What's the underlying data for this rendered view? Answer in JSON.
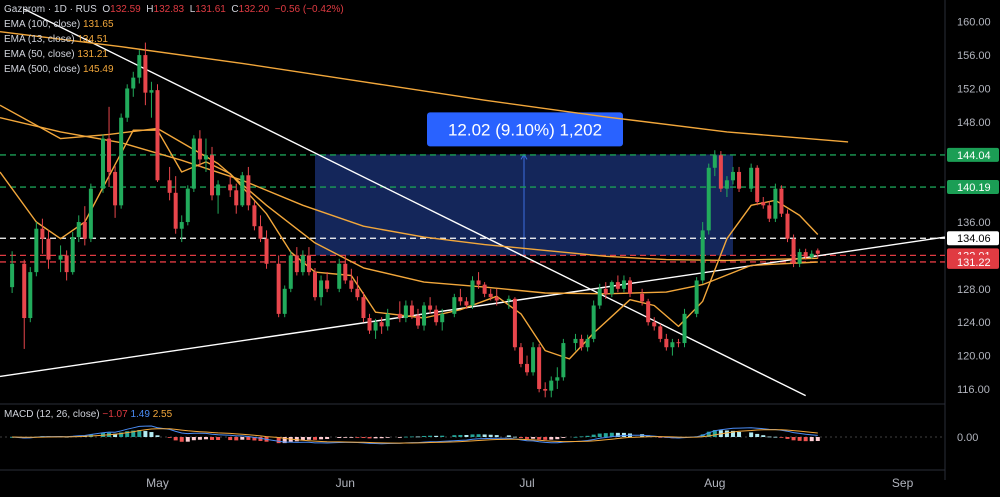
{
  "header": {
    "symbol": "Gazprom · 1D · RUS",
    "o_label": "O",
    "o": "132.59",
    "h_label": "H",
    "h": "132.83",
    "l_label": "L",
    "l": "131.61",
    "c_label": "C",
    "c": "132.20",
    "change": "−0.56 (−0.42%)"
  },
  "indicators": [
    {
      "label": "EMA (100, close)",
      "value": "131.65",
      "color": "#f2a73b"
    },
    {
      "label": "EMA (13, close)",
      "value": "134.51",
      "color": "#f2a73b"
    },
    {
      "label": "EMA (50, close)",
      "value": "131.21",
      "color": "#f2a73b"
    },
    {
      "label": "EMA (500, close)",
      "value": "145.49",
      "color": "#f2a73b"
    }
  ],
  "macd": {
    "label": "MACD (12, 26, close)",
    "v1": "−1.07",
    "v2": "1.49",
    "v3": "2.55"
  },
  "measure_label": "12.02 (9.10%) 1,202",
  "chart_data": {
    "type": "candlestick",
    "y_ticks": [
      116,
      120,
      124,
      128,
      132,
      136,
      140,
      144,
      148,
      152,
      156,
      160
    ],
    "ylim": [
      114.2,
      162.6
    ],
    "x_labels": [
      {
        "label": "May",
        "day": 26
      },
      {
        "label": "Jun",
        "day": 57
      },
      {
        "label": "Jul",
        "day": 87
      },
      {
        "label": "Aug",
        "day": 118
      },
      {
        "label": "Sep",
        "day": 149
      }
    ],
    "xlim": [
      0,
      156
    ],
    "price_tags": [
      {
        "value": 144.04,
        "label": "144.04",
        "color": "#1b9e55",
        "line": "dashed"
      },
      {
        "value": 140.19,
        "label": "140.19",
        "color": "#1b9e55",
        "line": "dashed"
      },
      {
        "value": 134.06,
        "label": "134.06",
        "color": "#ffffff",
        "line": "dashed"
      },
      {
        "value": 132.01,
        "label": "132.01",
        "color": "#e03b42",
        "line": "dashed"
      },
      {
        "value": 131.22,
        "label": "131.22",
        "color": "#e03b42",
        "line": "dashed"
      }
    ],
    "measure_box": {
      "day_start": 52,
      "day_end": 121,
      "low": 132.0,
      "high": 144.1
    },
    "trendlines": [
      {
        "name": "down",
        "from": [
          4,
          161.5
        ],
        "to": [
          133,
          115.2
        ]
      },
      {
        "name": "up",
        "from": [
          0,
          117.5
        ],
        "to": [
          156,
          134.2
        ]
      }
    ],
    "candles": [
      [
        2,
        128.2,
        132.5,
        127.5,
        131.0
      ],
      [
        4,
        131.0,
        131.5,
        120.8,
        124.5
      ],
      [
        5,
        124.5,
        130.6,
        124.0,
        130.0
      ],
      [
        6,
        130.0,
        136.0,
        129.5,
        135.2
      ],
      [
        7,
        135.2,
        136.4,
        132.2,
        134.0
      ],
      [
        8,
        134.0,
        135.0,
        130.4,
        131.5
      ],
      [
        10,
        131.5,
        133.2,
        130.0,
        132.0
      ],
      [
        11,
        132.0,
        132.6,
        129.0,
        130.0
      ],
      [
        12,
        130.0,
        134.8,
        129.7,
        134.2
      ],
      [
        13,
        134.2,
        136.8,
        133.6,
        136.0
      ],
      [
        14,
        136.0,
        137.9,
        133.2,
        134.0
      ],
      [
        15,
        134.0,
        140.6,
        133.6,
        140.0
      ],
      [
        17,
        140.0,
        146.5,
        139.5,
        146.0
      ],
      [
        18,
        146.0,
        149.8,
        140.2,
        142.0
      ],
      [
        19,
        142.0,
        142.7,
        136.5,
        138.0
      ],
      [
        20,
        138.0,
        149.0,
        137.6,
        148.5
      ],
      [
        21,
        148.5,
        152.5,
        148.0,
        152.0
      ],
      [
        22,
        152.0,
        154.0,
        151.0,
        153.3
      ],
      [
        23,
        153.3,
        156.6,
        152.6,
        156.0
      ],
      [
        24,
        156.0,
        157.5,
        150.0,
        151.5
      ],
      [
        25,
        151.5,
        152.8,
        148.5,
        151.8
      ],
      [
        26,
        151.8,
        152.5,
        140.8,
        141.0
      ],
      [
        28,
        141.0,
        142.6,
        138.6,
        139.5
      ],
      [
        29,
        139.5,
        141.5,
        134.6,
        135.2
      ],
      [
        30,
        135.2,
        136.8,
        133.6,
        136.0
      ],
      [
        31,
        136.0,
        140.4,
        135.6,
        140.0
      ],
      [
        32,
        140.0,
        146.4,
        139.6,
        146.0
      ],
      [
        33,
        146.0,
        147.0,
        142.6,
        143.5
      ],
      [
        34,
        143.5,
        146.0,
        142.0,
        144.0
      ],
      [
        35,
        144.0,
        145.0,
        138.6,
        139.2
      ],
      [
        36,
        139.2,
        141.0,
        137.0,
        140.5
      ],
      [
        38,
        140.5,
        141.5,
        139.0,
        139.8
      ],
      [
        39,
        139.8,
        140.6,
        137.0,
        138.0
      ],
      [
        40,
        138.0,
        142.0,
        137.8,
        141.6
      ],
      [
        41,
        141.6,
        142.6,
        137.4,
        138.0
      ],
      [
        42,
        138.0,
        138.5,
        135.0,
        135.5
      ],
      [
        43,
        135.5,
        136.8,
        133.6,
        134.0
      ],
      [
        44,
        134.0,
        135.0,
        130.4,
        131.0
      ],
      [
        46,
        131.0,
        132.0,
        124.6,
        125.0
      ],
      [
        47,
        125.0,
        128.4,
        124.6,
        128.0
      ],
      [
        48,
        128.0,
        132.5,
        127.6,
        132.0
      ],
      [
        49,
        132.0,
        133.0,
        129.6,
        130.0
      ],
      [
        50,
        130.0,
        132.6,
        129.6,
        132.0
      ],
      [
        51,
        132.0,
        133.0,
        129.6,
        130.0
      ],
      [
        52,
        130.0,
        130.5,
        126.6,
        127.0
      ],
      [
        53,
        127.0,
        129.6,
        126.0,
        129.0
      ],
      [
        54,
        129.0,
        130.0,
        127.6,
        128.0
      ],
      [
        56,
        128.0,
        131.6,
        127.6,
        131.0
      ],
      [
        57,
        131.0,
        132.0,
        128.6,
        129.0
      ],
      [
        58,
        129.0,
        130.4,
        127.6,
        128.0
      ],
      [
        59,
        128.0,
        129.5,
        126.6,
        127.0
      ],
      [
        60,
        127.0,
        127.6,
        124.0,
        124.5
      ],
      [
        61,
        124.5,
        125.0,
        122.6,
        123.0
      ],
      [
        62,
        123.0,
        124.4,
        122.0,
        124.0
      ],
      [
        63,
        124.0,
        124.6,
        122.6,
        123.5
      ],
      [
        64,
        123.5,
        125.6,
        123.0,
        125.0
      ],
      [
        66,
        125.0,
        126.5,
        124.0,
        124.5
      ],
      [
        67,
        124.5,
        126.6,
        124.0,
        126.0
      ],
      [
        68,
        126.0,
        126.6,
        124.4,
        124.8
      ],
      [
        69,
        124.8,
        125.6,
        123.2,
        123.6
      ],
      [
        70,
        123.6,
        126.4,
        123.0,
        126.0
      ],
      [
        71,
        126.0,
        127.0,
        125.0,
        125.5
      ],
      [
        72,
        125.5,
        126.0,
        123.6,
        124.0
      ],
      [
        73,
        124.0,
        125.6,
        123.0,
        125.0
      ],
      [
        75,
        125.0,
        127.4,
        124.6,
        127.0
      ],
      [
        76,
        127.0,
        128.0,
        126.0,
        126.5
      ],
      [
        77,
        126.5,
        127.0,
        125.6,
        126.0
      ],
      [
        78,
        126.0,
        129.5,
        125.6,
        129.0
      ],
      [
        79,
        129.0,
        130.0,
        128.0,
        128.5
      ],
      [
        80,
        128.5,
        128.8,
        127.0,
        127.4
      ],
      [
        81,
        127.4,
        128.0,
        126.6,
        127.0
      ],
      [
        82,
        127.0,
        128.0,
        126.0,
        126.6
      ],
      [
        84,
        126.6,
        127.2,
        125.6,
        126.8
      ],
      [
        85,
        126.8,
        127.0,
        120.6,
        121.0
      ],
      [
        86,
        121.0,
        121.5,
        118.6,
        119.0
      ],
      [
        87,
        119.0,
        120.0,
        117.6,
        118.0
      ],
      [
        88,
        118.0,
        121.6,
        117.6,
        121.0
      ],
      [
        89,
        121.0,
        121.4,
        115.6,
        116.0
      ],
      [
        90,
        116.0,
        116.8,
        115.0,
        115.8
      ],
      [
        91,
        115.8,
        117.5,
        115.0,
        117.0
      ],
      [
        92,
        117.0,
        118.6,
        116.0,
        117.4
      ],
      [
        93,
        117.4,
        122.0,
        117.0,
        121.5
      ],
      [
        95,
        121.5,
        122.6,
        120.6,
        122.0
      ],
      [
        96,
        122.0,
        122.5,
        120.6,
        121.0
      ],
      [
        97,
        121.0,
        122.5,
        120.5,
        122.0
      ],
      [
        98,
        122.0,
        126.6,
        121.6,
        126.0
      ],
      [
        99,
        126.0,
        128.6,
        125.6,
        128.0
      ],
      [
        100,
        128.0,
        128.8,
        126.8,
        127.4
      ],
      [
        101,
        127.4,
        129.0,
        127.0,
        128.8
      ],
      [
        102,
        128.8,
        129.6,
        127.6,
        128.0
      ],
      [
        103,
        128.0,
        129.6,
        127.6,
        129.0
      ],
      [
        104,
        129.0,
        129.4,
        127.0,
        127.4
      ],
      [
        106,
        127.4,
        128.0,
        126.0,
        126.5
      ],
      [
        107,
        126.5,
        126.8,
        123.6,
        124.0
      ],
      [
        108,
        124.0,
        124.6,
        123.0,
        123.5
      ],
      [
        109,
        123.5,
        123.8,
        121.6,
        122.0
      ],
      [
        110,
        122.0,
        122.6,
        120.6,
        121.0
      ],
      [
        111,
        121.0,
        122.0,
        120.0,
        121.6
      ],
      [
        112,
        121.6,
        122.0,
        121.0,
        121.5
      ],
      [
        113,
        121.5,
        125.6,
        121.0,
        125.0
      ],
      [
        115,
        125.0,
        129.4,
        124.6,
        129.0
      ],
      [
        116,
        129.0,
        136.0,
        128.6,
        135.0
      ],
      [
        117,
        135.0,
        143.0,
        134.5,
        142.5
      ],
      [
        118,
        142.5,
        144.6,
        141.5,
        144.0
      ],
      [
        119,
        144.0,
        144.5,
        139.6,
        140.0
      ],
      [
        120,
        140.0,
        141.5,
        139.0,
        141.0
      ],
      [
        121,
        141.0,
        142.6,
        140.5,
        142.0
      ],
      [
        122,
        142.0,
        142.6,
        139.6,
        140.0
      ],
      [
        124,
        140.0,
        143.0,
        139.6,
        142.5
      ],
      [
        125,
        142.5,
        142.8,
        138.0,
        138.4
      ],
      [
        126,
        138.4,
        139.0,
        137.6,
        138.0
      ],
      [
        127,
        138.0,
        138.5,
        136.0,
        136.4
      ],
      [
        128,
        136.4,
        140.6,
        136.0,
        140.0
      ],
      [
        129,
        140.0,
        140.4,
        136.6,
        137.0
      ],
      [
        130,
        137.0,
        137.5,
        133.6,
        134.0
      ],
      [
        131,
        134.0,
        134.5,
        130.6,
        131.0
      ],
      [
        132,
        131.0,
        132.8,
        130.6,
        132.4
      ],
      [
        133,
        132.4,
        132.8,
        131.5,
        131.8
      ],
      [
        134,
        131.8,
        132.6,
        131.6,
        132.2
      ],
      [
        135,
        132.59,
        132.83,
        131.61,
        132.2
      ]
    ],
    "ema_series": [
      {
        "name": "EMA (500, close)",
        "points": [
          [
            0,
            158.8
          ],
          [
            20,
            157.0
          ],
          [
            40,
            155.0
          ],
          [
            60,
            152.8
          ],
          [
            80,
            150.6
          ],
          [
            100,
            148.6
          ],
          [
            120,
            146.8
          ],
          [
            140,
            145.6
          ]
        ]
      },
      {
        "name": "EMA (100, close)",
        "points": [
          [
            0,
            148.5
          ],
          [
            10,
            146.8
          ],
          [
            20,
            145.5
          ],
          [
            30,
            143.4
          ],
          [
            40,
            141.0
          ],
          [
            50,
            138.0
          ],
          [
            60,
            135.5
          ],
          [
            70,
            134.2
          ],
          [
            80,
            133.3
          ],
          [
            90,
            132.6
          ],
          [
            100,
            131.9
          ],
          [
            110,
            131.5
          ],
          [
            120,
            131.4
          ],
          [
            135,
            131.65
          ]
        ]
      },
      {
        "name": "EMA (50, close)",
        "points": [
          [
            0,
            150.0
          ],
          [
            10,
            146.0
          ],
          [
            18,
            146.5
          ],
          [
            26,
            147.2
          ],
          [
            36,
            143.0
          ],
          [
            44,
            138.0
          ],
          [
            52,
            133.5
          ],
          [
            60,
            130.5
          ],
          [
            70,
            128.8
          ],
          [
            80,
            128.2
          ],
          [
            90,
            127.5
          ],
          [
            100,
            127.4
          ],
          [
            110,
            127.6
          ],
          [
            116,
            128.5
          ],
          [
            124,
            130.8
          ],
          [
            135,
            131.21
          ]
        ]
      },
      {
        "name": "EMA (13, close)",
        "points": [
          [
            0,
            142.0
          ],
          [
            6,
            136.0
          ],
          [
            10,
            134.0
          ],
          [
            14,
            136.0
          ],
          [
            18,
            141.5
          ],
          [
            22,
            147.0
          ],
          [
            26,
            147.0
          ],
          [
            30,
            142.0
          ],
          [
            34,
            143.2
          ],
          [
            38,
            141.8
          ],
          [
            44,
            137.0
          ],
          [
            48,
            132.4
          ],
          [
            52,
            130.0
          ],
          [
            58,
            129.6
          ],
          [
            62,
            125.2
          ],
          [
            70,
            124.5
          ],
          [
            76,
            125.5
          ],
          [
            82,
            127.1
          ],
          [
            86,
            125.0
          ],
          [
            90,
            120.6
          ],
          [
            94,
            119.6
          ],
          [
            98,
            122.7
          ],
          [
            104,
            126.7
          ],
          [
            108,
            126.0
          ],
          [
            112,
            123.5
          ],
          [
            116,
            126.5
          ],
          [
            120,
            134.0
          ],
          [
            124,
            138.0
          ],
          [
            128,
            138.6
          ],
          [
            132,
            136.8
          ],
          [
            135,
            134.51
          ]
        ]
      }
    ],
    "macd_hist_range": [
      -0.6,
      0.6
    ]
  }
}
